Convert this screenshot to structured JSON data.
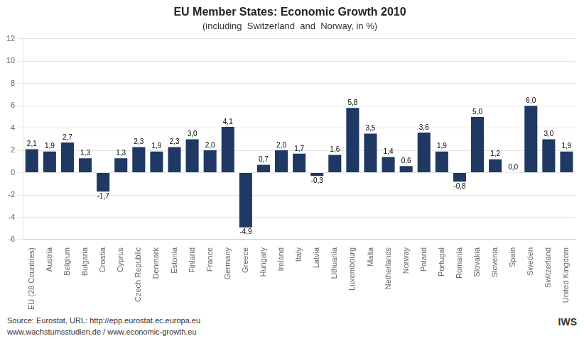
{
  "chart_data": {
    "type": "bar",
    "title": "EU Member States: Economic Growth 2010",
    "subtitle": "(including  Switzerland  and  Norway, in %)",
    "categories": [
      "EU (28 Countries)",
      "Austria",
      "Belgium",
      "Bulgaria",
      "Croatia",
      "Cyprus",
      "Czech Republic",
      "Denmark",
      "Estonia",
      "Finland",
      "France",
      "Germany",
      "Greece",
      "Hungary",
      "Ireland",
      "Italy",
      "Latvia",
      "Lithuania",
      "Luxembourg",
      "Malta",
      "Netherlands",
      "Norway",
      "Poland",
      "Portugal",
      "Romania",
      "Slovakia",
      "Slovenia",
      "Spain",
      "Sweden",
      "Switzerland",
      "United Kingdom"
    ],
    "values": [
      2.1,
      1.9,
      2.7,
      1.3,
      -1.7,
      1.3,
      2.3,
      1.9,
      2.3,
      3.0,
      2.0,
      4.1,
      -4.9,
      0.7,
      2.0,
      1.7,
      -0.3,
      1.6,
      5.8,
      3.5,
      1.4,
      0.6,
      3.6,
      1.9,
      -0.8,
      5.0,
      1.2,
      0.0,
      6.0,
      3.0,
      1.9
    ],
    "value_labels": [
      "2,1",
      "1,9",
      "2,7",
      "1,3",
      "-1,7",
      "1,3",
      "2,3",
      "1,9",
      "2,3",
      "3,0",
      "2,0",
      "4,1",
      "-4,9",
      "0,7",
      "2,0",
      "1,7",
      "-0,3",
      "1,6",
      "5,8",
      "3,5",
      "1,4",
      "0,6",
      "3,6",
      "1,9",
      "-0,8",
      "5,0",
      "1,2",
      "0,0",
      "6,0",
      "3,0",
      "1,9"
    ],
    "color": "#1F3864",
    "ylim": [
      -6,
      12
    ],
    "yticks": [
      -6,
      -4,
      -2,
      0,
      2,
      4,
      6,
      8,
      10,
      12
    ],
    "grid": true,
    "data_labels": true,
    "annotations": [
      "Source: Eurostat, URL: http://epp.eurostat.ec.europa.eu",
      "www.wachstumsstudien.de  /  www.economic-growth.eu",
      "IWS"
    ]
  }
}
